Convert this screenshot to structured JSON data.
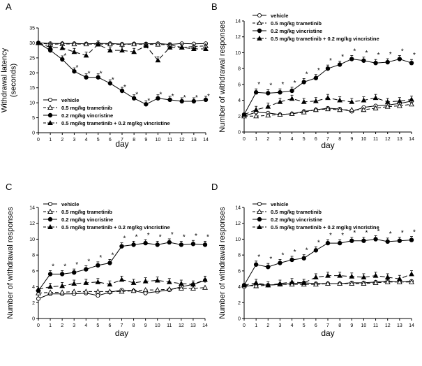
{
  "chart_data": [
    {
      "type": "line",
      "panel_label": "A",
      "title": "",
      "xlabel": "day",
      "ylabel_lines": [
        "Withdrawal latency",
        "(seconds)"
      ],
      "xlim": [
        0,
        14
      ],
      "ylim": [
        0,
        35
      ],
      "x_ticks": [
        "0",
        "1",
        "2",
        "3",
        "4",
        "5",
        "6",
        "7",
        "8",
        "9",
        "10",
        "11",
        "12",
        "13",
        "14"
      ],
      "y_ticks": [
        "0",
        "5",
        "10",
        "15",
        "20",
        "25",
        "30",
        "35"
      ],
      "legend_position": "bottom-left",
      "x": [
        0,
        1,
        2,
        3,
        4,
        5,
        6,
        7,
        8,
        9,
        10,
        11,
        12,
        13,
        14
      ],
      "series": [
        {
          "name": "vehicle",
          "values": [
            30,
            29.8,
            29.8,
            29.8,
            29.7,
            29.8,
            29.8,
            29.6,
            29.7,
            29.7,
            29.8,
            29.5,
            29.8,
            29.7,
            29.8
          ]
        },
        {
          "name": "0.5 mg/kg trametinib",
          "values": [
            30,
            29.5,
            29.7,
            29.6,
            29.6,
            29.6,
            29.6,
            29.5,
            29.6,
            29.5,
            29.5,
            29.3,
            28.5,
            28.8,
            29
          ]
        },
        {
          "name": "0.2 mg/kg vincristine",
          "values": [
            30,
            27.5,
            24.5,
            20.5,
            18.5,
            18.5,
            16.5,
            14,
            11.5,
            9.5,
            11.5,
            11,
            10.5,
            10.5,
            11
          ]
        },
        {
          "name": "0.5 mg/kg trametinib + 0.2 mg/kg vincristine",
          "values": [
            30,
            28.5,
            28.3,
            27,
            25.8,
            29.5,
            27.5,
            27.5,
            27,
            29,
            24.2,
            28.5,
            28.5,
            28,
            28
          ]
        }
      ],
      "star_days": [
        2,
        3,
        4,
        5,
        6,
        7,
        8,
        9,
        10,
        11,
        12,
        13,
        14
      ]
    },
    {
      "type": "line",
      "panel_label": "B",
      "title": "",
      "xlabel": "day",
      "ylabel_lines": [
        "Number of withdrawal responses"
      ],
      "xlim": [
        0,
        14
      ],
      "ylim": [
        0,
        14
      ],
      "x_ticks": [
        "0",
        "1",
        "2",
        "3",
        "4",
        "5",
        "6",
        "7",
        "8",
        "9",
        "10",
        "11",
        "12",
        "13",
        "14"
      ],
      "y_ticks": [
        "0",
        "2",
        "4",
        "6",
        "8",
        "10",
        "12",
        "14"
      ],
      "legend_position": "top-left",
      "x": [
        0,
        1,
        2,
        3,
        4,
        5,
        6,
        7,
        8,
        9,
        10,
        11,
        12,
        13,
        14
      ],
      "series": [
        {
          "name": "vehicle",
          "values": [
            2,
            2.5,
            2.4,
            2.2,
            2.3,
            2.6,
            2.8,
            3,
            2.9,
            2.6,
            3.1,
            3.3,
            3.4,
            3.6,
            3.9
          ]
        },
        {
          "name": "0.5 mg/kg trametinib",
          "values": [
            2,
            2,
            2.1,
            2.2,
            2.3,
            2.5,
            2.8,
            2.9,
            2.8,
            2.8,
            2.8,
            3,
            3.2,
            3.3,
            3.5
          ]
        },
        {
          "name": "0.2 mg/kg vincristine",
          "values": [
            2.2,
            5,
            4.9,
            5,
            5.2,
            6.3,
            6.8,
            8,
            8.5,
            9.2,
            9,
            8.7,
            8.8,
            9.2,
            8.7
          ]
        },
        {
          "name": "0.5 mg/kg trametinib + 0.2 mg/kg vincristine",
          "values": [
            2.2,
            2.8,
            3.2,
            3.8,
            4.2,
            3.8,
            3.9,
            4.3,
            4,
            3.8,
            4,
            4.3,
            3.8,
            3.9,
            4.1
          ]
        }
      ],
      "star_days": [
        1,
        2,
        3,
        4,
        5,
        6,
        7,
        8,
        9,
        10,
        11,
        12,
        13,
        14
      ]
    },
    {
      "type": "line",
      "panel_label": "C",
      "title": "",
      "xlabel": "day",
      "ylabel_lines": [
        "Number of withdrawal responses"
      ],
      "xlim": [
        0,
        14
      ],
      "ylim": [
        0,
        14
      ],
      "x_ticks": [
        "0",
        "1",
        "2",
        "3",
        "4",
        "5",
        "6",
        "7",
        "8",
        "9",
        "10",
        "11",
        "12",
        "13",
        "14"
      ],
      "y_ticks": [
        "0",
        "2",
        "4",
        "6",
        "8",
        "10",
        "12",
        "14"
      ],
      "legend_position": "top-left",
      "x": [
        0,
        1,
        2,
        3,
        4,
        5,
        6,
        7,
        8,
        9,
        10,
        11,
        12,
        13,
        14
      ],
      "series": [
        {
          "name": "vehicle",
          "values": [
            2.5,
            3.1,
            3.1,
            3.1,
            3.2,
            2.9,
            3.3,
            3.6,
            3.5,
            3.2,
            3.4,
            3.6,
            4,
            4.3,
            4.8
          ]
        },
        {
          "name": "0.5 mg/kg trametinib",
          "values": [
            3.2,
            3.3,
            3.3,
            3.4,
            3.4,
            3.4,
            3.4,
            3.4,
            3.5,
            3.6,
            3.6,
            3.7,
            3.8,
            3.8,
            3.9
          ]
        },
        {
          "name": "0.2 mg/kg vincristine",
          "values": [
            3.5,
            5.6,
            5.6,
            5.8,
            6.2,
            6.7,
            7,
            9.1,
            9.3,
            9.5,
            9.3,
            9.6,
            9.3,
            9.4,
            9.3
          ]
        },
        {
          "name": "0.5 mg/kg trametinib + 0.2 mg/kg vincristine",
          "values": [
            3.7,
            4,
            4.1,
            4.4,
            4.5,
            4.6,
            4.3,
            4.9,
            4.5,
            4.7,
            4.8,
            4.6,
            4.4,
            4.3,
            4.9
          ]
        }
      ],
      "star_days": [
        1,
        2,
        3,
        4,
        5,
        6,
        7,
        8,
        9,
        10,
        11,
        12,
        13,
        14
      ]
    },
    {
      "type": "line",
      "panel_label": "D",
      "title": "",
      "xlabel": "day",
      "ylabel_lines": [
        "Number of withdrawal responses"
      ],
      "xlim": [
        0,
        14
      ],
      "ylim": [
        0,
        14
      ],
      "x_ticks": [
        "0",
        "1",
        "2",
        "3",
        "4",
        "5",
        "6",
        "7",
        "8",
        "9",
        "10",
        "11",
        "12",
        "13",
        "14"
      ],
      "y_ticks": [
        "0",
        "2",
        "4",
        "6",
        "8",
        "10",
        "12",
        "14"
      ],
      "legend_position": "top-left",
      "x": [
        0,
        1,
        2,
        3,
        4,
        5,
        6,
        7,
        8,
        9,
        10,
        11,
        12,
        13,
        14
      ],
      "series": [
        {
          "name": "vehicle",
          "values": [
            4,
            4.3,
            4.2,
            4.3,
            4.4,
            4.5,
            4.4,
            4.4,
            4.4,
            4.5,
            4.5,
            4.6,
            4.7,
            4.6,
            4.7
          ]
        },
        {
          "name": "0.5 mg/kg trametinib",
          "values": [
            4.2,
            4.1,
            4.2,
            4.3,
            4.3,
            4.3,
            4.3,
            4.4,
            4.4,
            4.4,
            4.4,
            4.5,
            4.6,
            4.6,
            4.6
          ]
        },
        {
          "name": "0.2 mg/kg vincristine",
          "values": [
            4.2,
            6.8,
            6.5,
            7,
            7.4,
            7.6,
            8.6,
            9.5,
            9.5,
            9.8,
            9.8,
            10,
            9.7,
            9.8,
            9.9
          ]
        },
        {
          "name": "0.5 mg/kg trametinib + 0.2 mg/kg vincristine",
          "values": [
            4.2,
            4.5,
            4.2,
            4.4,
            4.6,
            4.5,
            5.2,
            5.4,
            5.4,
            5.3,
            5.2,
            5.4,
            5.2,
            5,
            5.6
          ]
        }
      ],
      "star_days": [
        1,
        2,
        3,
        4,
        5,
        6,
        7,
        8,
        9,
        10,
        11,
        12,
        13,
        14
      ]
    }
  ]
}
